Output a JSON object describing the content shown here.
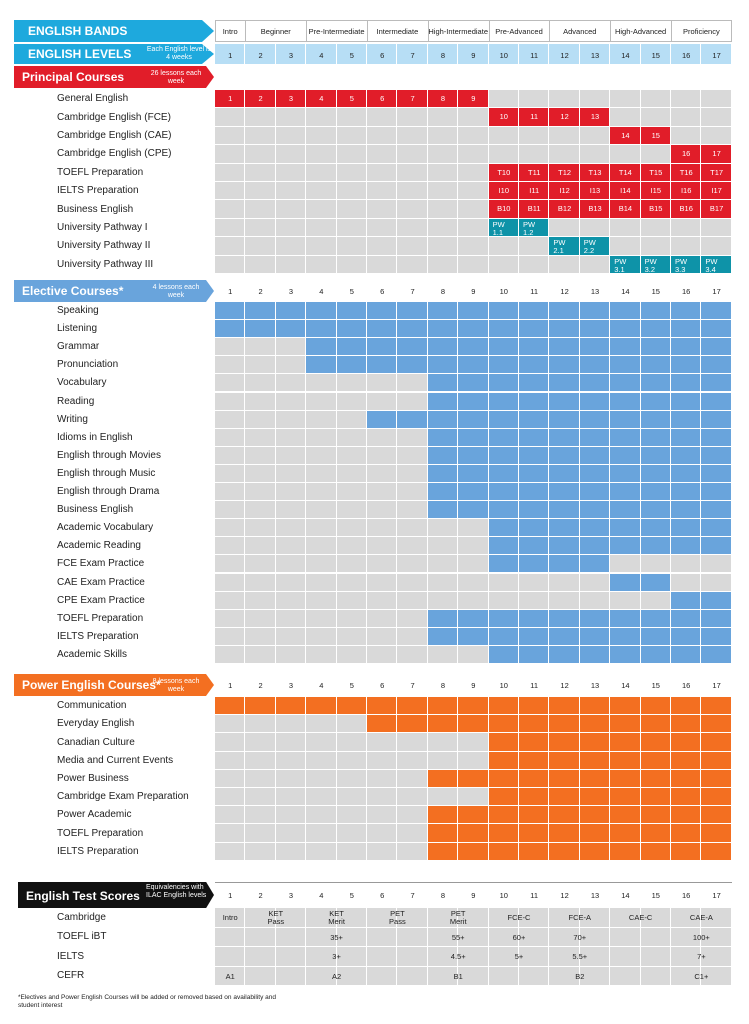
{
  "colors": {
    "red": "#e11d29",
    "blue": "#69a4dc",
    "teal": "#0e93a8",
    "orange": "#f36f21",
    "gray": "#d9d9d9",
    "cyan": "#1ea9dd",
    "lightblue": "#b7def5",
    "black": "#111111"
  },
  "header": {
    "bands_title": "ENGLISH BANDS",
    "levels_title": "ENGLISH LEVELS",
    "levels_note": "Each English level is 4 weeks",
    "bands": [
      {
        "label": "Intro",
        "span": 1
      },
      {
        "label": "Beginner",
        "span": 2
      },
      {
        "label": "Pre-Intermediate",
        "span": 2
      },
      {
        "label": "Intermediate",
        "span": 2
      },
      {
        "label": "High-Intermediate",
        "span": 2
      },
      {
        "label": "Pre-Advanced",
        "span": 2
      },
      {
        "label": "Advanced",
        "span": 2
      },
      {
        "label": "High-Advanced",
        "span": 2
      },
      {
        "label": "Proficiency",
        "span": 2
      }
    ],
    "levels": [
      "1",
      "2",
      "3",
      "4",
      "5",
      "6",
      "7",
      "8",
      "9",
      "10",
      "11",
      "12",
      "13",
      "14",
      "15",
      "16",
      "17"
    ]
  },
  "principal": {
    "title": "Principal Courses",
    "note": "26 lessons each week",
    "rows": [
      {
        "name": "General English",
        "cells": [
          [
            0,
            "1"
          ],
          [
            1,
            "2"
          ],
          [
            2,
            "3"
          ],
          [
            3,
            "4"
          ],
          [
            4,
            "5"
          ],
          [
            5,
            "6"
          ],
          [
            6,
            "7"
          ],
          [
            7,
            "8"
          ],
          [
            8,
            "9"
          ]
        ]
      },
      {
        "name": "Cambridge English (FCE)",
        "cells": [
          [
            9,
            "10"
          ],
          [
            10,
            "11"
          ],
          [
            11,
            "12"
          ],
          [
            12,
            "13"
          ]
        ]
      },
      {
        "name": "Cambridge English (CAE)",
        "cells": [
          [
            13,
            "14"
          ],
          [
            14,
            "15"
          ]
        ]
      },
      {
        "name": "Cambridge English (CPE)",
        "cells": [
          [
            15,
            "16"
          ],
          [
            16,
            "17"
          ]
        ]
      },
      {
        "name": "TOEFL Preparation",
        "cells": [
          [
            9,
            "T10"
          ],
          [
            10,
            "T11"
          ],
          [
            11,
            "T12"
          ],
          [
            12,
            "T13"
          ],
          [
            13,
            "T14"
          ],
          [
            14,
            "T15"
          ],
          [
            15,
            "T16"
          ],
          [
            16,
            "T17"
          ]
        ]
      },
      {
        "name": "IELTS Preparation",
        "cells": [
          [
            9,
            "I10"
          ],
          [
            10,
            "I11"
          ],
          [
            11,
            "I12"
          ],
          [
            12,
            "I13"
          ],
          [
            13,
            "I14"
          ],
          [
            14,
            "I15"
          ],
          [
            15,
            "I16"
          ],
          [
            16,
            "I17"
          ]
        ]
      },
      {
        "name": "Business English",
        "cells": [
          [
            9,
            "B10"
          ],
          [
            10,
            "B11"
          ],
          [
            11,
            "B12"
          ],
          [
            12,
            "B13"
          ],
          [
            13,
            "B14"
          ],
          [
            14,
            "B15"
          ],
          [
            15,
            "B16"
          ],
          [
            16,
            "B17"
          ]
        ]
      },
      {
        "name": "University Pathway I",
        "teal": true,
        "cells": [
          [
            9,
            "PW\n1.1"
          ],
          [
            10,
            "PW\n1.2"
          ]
        ]
      },
      {
        "name": "University Pathway II",
        "teal": true,
        "cells": [
          [
            11,
            "PW\n2.1"
          ],
          [
            12,
            "PW\n2.2"
          ]
        ]
      },
      {
        "name": "University Pathway III",
        "teal": true,
        "cells": [
          [
            13,
            "PW\n3.1"
          ],
          [
            14,
            "PW\n3.2"
          ],
          [
            15,
            "PW\n3.3"
          ],
          [
            16,
            "PW\n3.4"
          ]
        ]
      }
    ]
  },
  "elective": {
    "title": "Elective Courses*",
    "note": "4 lessons each week",
    "rows": [
      {
        "name": "Speaking",
        "from": 0
      },
      {
        "name": "Listening",
        "from": 0
      },
      {
        "name": "Grammar",
        "from": 3
      },
      {
        "name": "Pronunciation",
        "from": 3
      },
      {
        "name": "Vocabulary",
        "from": 7
      },
      {
        "name": "Reading",
        "from": 7
      },
      {
        "name": "Writing",
        "from": 5
      },
      {
        "name": "Idioms in English",
        "from": 7
      },
      {
        "name": "English through Movies",
        "from": 7
      },
      {
        "name": "English through Music",
        "from": 7
      },
      {
        "name": "English through Drama",
        "from": 7
      },
      {
        "name": "Business English",
        "from": 7
      },
      {
        "name": "Academic Vocabulary",
        "from": 9
      },
      {
        "name": "Academic Reading",
        "from": 9
      },
      {
        "name": "FCE Exam Practice",
        "from": 9,
        "to": 12
      },
      {
        "name": "CAE Exam Practice",
        "from": 13,
        "to": 14
      },
      {
        "name": "CPE Exam Practice",
        "from": 15,
        "to": 16
      },
      {
        "name": "TOEFL Preparation",
        "from": 7
      },
      {
        "name": "IELTS Preparation",
        "from": 7
      },
      {
        "name": "Academic Skills",
        "from": 9
      }
    ]
  },
  "power": {
    "title": "Power English Courses*",
    "note": "8 lessons each week",
    "rows": [
      {
        "name": "Communication",
        "from": 0
      },
      {
        "name": "Everyday English",
        "from": 5
      },
      {
        "name": "Canadian Culture",
        "from": 9
      },
      {
        "name": "Media and Current Events",
        "from": 9
      },
      {
        "name": "Power Business",
        "from": 7
      },
      {
        "name": "Cambridge Exam Preparation",
        "from": 9
      },
      {
        "name": "Power Academic",
        "from": 7
      },
      {
        "name": "TOEFL Preparation",
        "from": 7
      },
      {
        "name": "IELTS Preparation",
        "from": 7
      }
    ]
  },
  "tests": {
    "title": "English Test Scores",
    "note": "Equivalencies with ILAC English levels",
    "rows": [
      {
        "name": "Cambridge",
        "cells": [
          [
            0,
            "Intro"
          ],
          [
            2,
            "KET\nPass"
          ],
          [
            4,
            "KET\nMerit"
          ],
          [
            6,
            "PET\nPass"
          ],
          [
            8,
            "PET\nMerit"
          ],
          [
            10,
            "FCE-C"
          ],
          [
            12,
            "FCE-A"
          ],
          [
            14,
            "CAE-C"
          ],
          [
            16,
            "CAE-A"
          ]
        ]
      },
      {
        "name": "TOEFL iBT",
        "cells": [
          [
            4,
            "35+"
          ],
          [
            8,
            "55+"
          ],
          [
            10,
            "60+"
          ],
          [
            12,
            "70+"
          ],
          [
            16,
            "100+"
          ]
        ]
      },
      {
        "name": "IELTS",
        "cells": [
          [
            4,
            "3+"
          ],
          [
            8,
            "4.5+"
          ],
          [
            10,
            "5+"
          ],
          [
            12,
            "5.5+"
          ],
          [
            16,
            "7+"
          ]
        ]
      },
      {
        "name": "CEFR",
        "cells": [
          [
            0,
            "A1"
          ],
          [
            4,
            "A2"
          ],
          [
            8,
            "B1"
          ],
          [
            12,
            "B2"
          ],
          [
            16,
            "C1+"
          ]
        ]
      }
    ]
  },
  "footnote": "*Electives and Power English Courses will be added or removed based on availability and student interest"
}
